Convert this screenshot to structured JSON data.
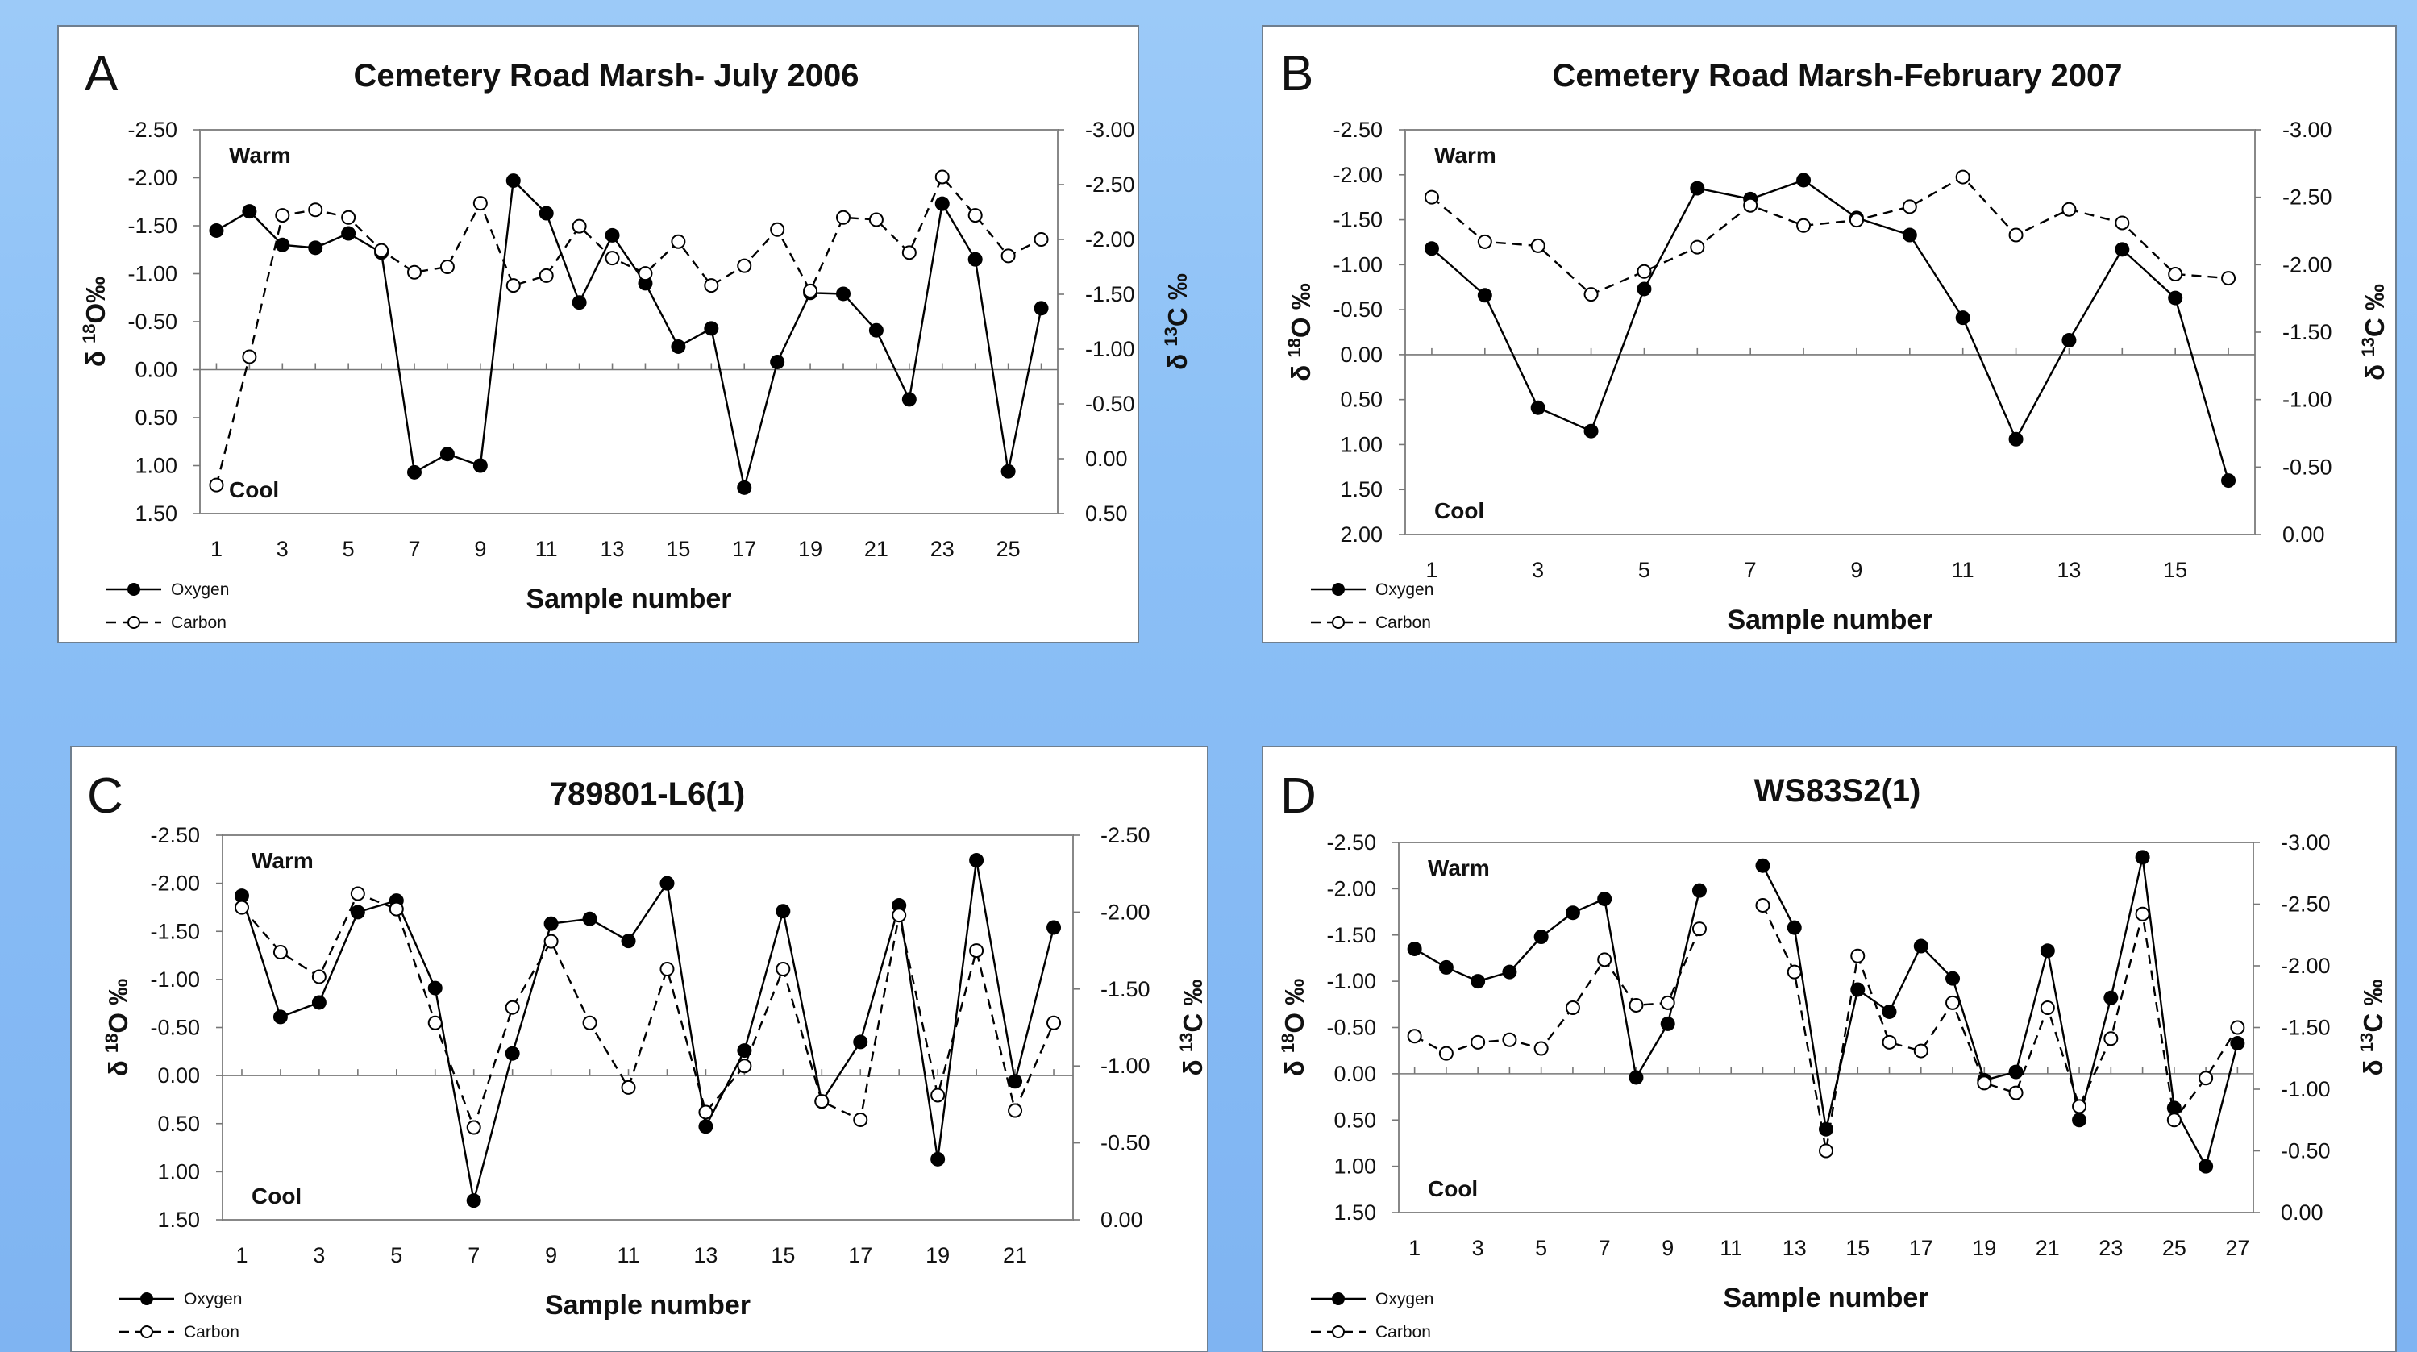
{
  "chart_data": [
    {
      "type": "line",
      "letter": "A",
      "title": "Cemetery Road Marsh- July 2006",
      "xlabel": "Sample number",
      "ylabel_left": "δ 18O‰",
      "ylabel_right": "δ 13C ‰",
      "warm_label": "Warm",
      "cool_label": "Cool",
      "left_ylim": [
        -2.5,
        1.5
      ],
      "left_ticks": [
        "-2.50",
        "-2.00",
        "-1.50",
        "-1.00",
        "-0.50",
        "0.00",
        "0.50",
        "1.00",
        "1.50"
      ],
      "right_ylim": [
        -3.0,
        0.5
      ],
      "right_ticks": [
        "-3.00",
        "-2.50",
        "-2.00",
        "-1.50",
        "-1.00",
        "-0.50",
        "0.00",
        "0.50"
      ],
      "x_ticks": [
        "1",
        "3",
        "5",
        "7",
        "9",
        "11",
        "13",
        "15",
        "17",
        "19",
        "21",
        "23",
        "25"
      ],
      "x_max": 26,
      "series": [
        {
          "name": "Oxygen",
          "axis": "left",
          "x": [
            1,
            2,
            3,
            4,
            5,
            6,
            7,
            8,
            9,
            10,
            11,
            12,
            13,
            14,
            15,
            16,
            17,
            18,
            19,
            20,
            21,
            22,
            23,
            24,
            25,
            26
          ],
          "values": [
            -1.45,
            -1.65,
            -1.3,
            -1.27,
            -1.42,
            -1.22,
            1.07,
            0.88,
            1.0,
            -1.97,
            -1.63,
            -0.7,
            -1.4,
            -0.9,
            -0.24,
            -0.43,
            1.23,
            -0.08,
            -0.8,
            -0.79,
            -0.41,
            0.31,
            -1.73,
            -1.15,
            1.06,
            -0.64
          ]
        },
        {
          "name": "Carbon",
          "axis": "right",
          "x": [
            1,
            2,
            3,
            4,
            5,
            6,
            7,
            8,
            9,
            10,
            11,
            12,
            13,
            14,
            15,
            16,
            17,
            18,
            19,
            20,
            21,
            22,
            23,
            24,
            25,
            26
          ],
          "values": [
            0.24,
            -0.93,
            -2.22,
            -2.27,
            -2.2,
            -1.9,
            -1.7,
            -1.75,
            -2.33,
            -1.58,
            -1.67,
            -2.12,
            -1.83,
            -1.69,
            -1.98,
            -1.58,
            -1.76,
            -2.09,
            -1.53,
            -2.2,
            -2.18,
            -1.88,
            -2.57,
            -2.22,
            -1.85,
            -2.0
          ]
        }
      ],
      "legend": [
        "Oxygen",
        "Carbon"
      ]
    },
    {
      "type": "line",
      "letter": "B",
      "title": "Cemetery Road Marsh-February 2007",
      "xlabel": "Sample number",
      "ylabel_left": "δ 18O ‰",
      "ylabel_right": "δ 13C ‰",
      "warm_label": "Warm",
      "cool_label": "Cool",
      "left_ylim": [
        -2.5,
        2.0
      ],
      "left_ticks": [
        "-2.50",
        "-2.00",
        "-1.50",
        "-1.00",
        "-0.50",
        "0.00",
        "0.50",
        "1.00",
        "1.50",
        "2.00"
      ],
      "right_ylim": [
        -3.0,
        0.0
      ],
      "right_ticks": [
        "-3.00",
        "-2.50",
        "-2.00",
        "-1.50",
        "-1.00",
        "-0.50",
        "0.00"
      ],
      "x_ticks": [
        "1",
        "3",
        "5",
        "7",
        "9",
        "11",
        "13",
        "15"
      ],
      "x_max": 16,
      "series": [
        {
          "name": "Oxygen",
          "axis": "left",
          "x": [
            1,
            2,
            3,
            4,
            5,
            6,
            7,
            8,
            9,
            10,
            11,
            12,
            13,
            14,
            15,
            16
          ],
          "values": [
            -1.18,
            -0.66,
            0.59,
            0.85,
            -0.73,
            -1.85,
            -1.73,
            -1.94,
            -1.52,
            -1.33,
            -0.41,
            0.94,
            -0.16,
            -1.17,
            -0.63,
            1.4
          ]
        },
        {
          "name": "Carbon",
          "axis": "right",
          "x": [
            1,
            2,
            3,
            4,
            5,
            6,
            7,
            8,
            9,
            10,
            11,
            12,
            13,
            14,
            15,
            16
          ],
          "values": [
            -2.5,
            -2.17,
            -2.14,
            -1.78,
            -1.95,
            -2.13,
            -2.44,
            -2.29,
            -2.33,
            -2.43,
            -2.65,
            -2.22,
            -2.41,
            -2.31,
            -1.93,
            -1.9
          ]
        }
      ],
      "legend": [
        "Oxygen",
        "Carbon"
      ]
    },
    {
      "type": "line",
      "letter": "C",
      "title": "789801-L6(1)",
      "xlabel": "Sample number",
      "ylabel_left": "δ 18O ‰",
      "ylabel_right": "δ 13C ‰",
      "warm_label": "Warm",
      "cool_label": "Cool",
      "left_ylim": [
        -2.5,
        1.5
      ],
      "left_ticks": [
        "-2.50",
        "-2.00",
        "-1.50",
        "-1.00",
        "-0.50",
        "0.00",
        "0.50",
        "1.00",
        "1.50"
      ],
      "right_ylim": [
        -2.5,
        0.0
      ],
      "right_ticks": [
        "-2.50",
        "-2.00",
        "-1.50",
        "-1.00",
        "-0.50",
        "0.00"
      ],
      "x_ticks": [
        "1",
        "3",
        "5",
        "7",
        "9",
        "11",
        "13",
        "15",
        "17",
        "19",
        "21"
      ],
      "x_max": 22,
      "series": [
        {
          "name": "Oxygen",
          "axis": "left",
          "x": [
            1,
            2,
            3,
            4,
            5,
            6,
            7,
            8,
            9,
            10,
            11,
            12,
            13,
            14,
            15,
            16,
            17,
            18,
            19,
            20,
            21,
            22
          ],
          "values": [
            -1.87,
            -0.61,
            -0.76,
            -1.7,
            -1.82,
            -0.91,
            1.3,
            -0.23,
            -1.58,
            -1.63,
            -1.4,
            -2.0,
            0.53,
            -0.26,
            -1.71,
            0.27,
            -0.35,
            -1.77,
            0.87,
            -2.24,
            0.06,
            -1.54
          ]
        },
        {
          "name": "Carbon",
          "axis": "right",
          "x": [
            1,
            2,
            3,
            4,
            5,
            6,
            7,
            8,
            9,
            10,
            11,
            12,
            13,
            14,
            15,
            16,
            17,
            18,
            19,
            20,
            21,
            22
          ],
          "values": [
            -2.03,
            -1.74,
            -1.58,
            -2.12,
            -2.02,
            -1.28,
            -0.6,
            -1.38,
            -1.81,
            -1.28,
            -0.86,
            -1.63,
            -0.7,
            -1.0,
            -1.63,
            -0.77,
            -0.65,
            -1.98,
            -0.81,
            -1.75,
            -0.71,
            -1.28
          ]
        }
      ],
      "legend": [
        "Oxygen",
        "Carbon"
      ]
    },
    {
      "type": "line",
      "letter": "D",
      "title": "WS83S2(1)",
      "xlabel": "Sample number",
      "ylabel_left": "δ 18O ‰",
      "ylabel_right": "δ 13C ‰",
      "warm_label": "Warm",
      "cool_label": "Cool",
      "left_ylim": [
        -2.5,
        1.5
      ],
      "left_ticks": [
        "-2.50",
        "-2.00",
        "-1.50",
        "-1.00",
        "-0.50",
        "0.00",
        "0.50",
        "1.00",
        "1.50"
      ],
      "right_ylim": [
        -3.0,
        0.0
      ],
      "right_ticks": [
        "-3.00",
        "-2.50",
        "-2.00",
        "-1.50",
        "-1.00",
        "-0.50",
        "0.00"
      ],
      "x_ticks": [
        "1",
        "3",
        "5",
        "7",
        "9",
        "11",
        "13",
        "15",
        "17",
        "19",
        "21",
        "23",
        "25",
        "27"
      ],
      "x_max": 27,
      "series": [
        {
          "name": "Oxygen",
          "axis": "left",
          "x": [
            1,
            2,
            3,
            4,
            5,
            6,
            7,
            8,
            9,
            10,
            12,
            13,
            14,
            15,
            16,
            17,
            18,
            19,
            20,
            21,
            22,
            23,
            24,
            25,
            26,
            27
          ],
          "values": [
            -1.35,
            -1.15,
            -1.0,
            -1.1,
            -1.48,
            -1.74,
            -1.89,
            0.04,
            -0.54,
            -1.98,
            -2.25,
            -1.58,
            0.6,
            -0.91,
            -0.67,
            -1.38,
            -1.03,
            0.07,
            -0.02,
            -1.33,
            0.5,
            -0.82,
            -2.34,
            0.37,
            1.0,
            -0.33
          ]
        },
        {
          "name": "Carbon",
          "axis": "right",
          "x": [
            1,
            2,
            3,
            4,
            5,
            6,
            7,
            8,
            9,
            10,
            12,
            13,
            14,
            15,
            16,
            17,
            18,
            19,
            20,
            21,
            22,
            23,
            24,
            25,
            26,
            27
          ],
          "values": [
            -1.43,
            -1.29,
            -1.38,
            -1.4,
            -1.33,
            -1.66,
            -2.05,
            -1.68,
            -1.7,
            -2.3,
            -2.49,
            -1.95,
            -0.5,
            -2.08,
            -1.38,
            -1.31,
            -1.7,
            -1.05,
            -0.97,
            -1.66,
            -0.86,
            -1.41,
            -2.42,
            -0.75,
            -1.09,
            -1.5
          ]
        }
      ],
      "legend": [
        "Oxygen",
        "Carbon"
      ]
    }
  ]
}
